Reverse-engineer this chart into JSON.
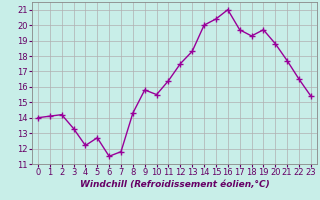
{
  "hours": [
    0,
    1,
    2,
    3,
    4,
    5,
    6,
    7,
    8,
    9,
    10,
    11,
    12,
    13,
    14,
    15,
    16,
    17,
    18,
    19,
    20,
    21,
    22,
    23
  ],
  "values": [
    14.0,
    14.1,
    14.2,
    13.3,
    12.2,
    12.7,
    11.5,
    11.8,
    14.3,
    15.8,
    15.5,
    16.4,
    17.5,
    18.3,
    20.0,
    20.4,
    21.0,
    19.7,
    19.3,
    19.7,
    18.8,
    17.7,
    16.5,
    15.4
  ],
  "line_color": "#990099",
  "marker": "+",
  "marker_size": 4,
  "linewidth": 1.0,
  "bg_color": "#c8eee8",
  "grid_color": "#b0b0b0",
  "xlabel": "Windchill (Refroidissement éolien,°C)",
  "ylim": [
    11,
    21.5
  ],
  "xlim": [
    -0.5,
    23.5
  ],
  "yticks": [
    11,
    12,
    13,
    14,
    15,
    16,
    17,
    18,
    19,
    20,
    21
  ],
  "xtick_labels": [
    "0",
    "1",
    "2",
    "3",
    "4",
    "5",
    "6",
    "7",
    "8",
    "9",
    "10",
    "11",
    "12",
    "13",
    "14",
    "15",
    "16",
    "17",
    "18",
    "19",
    "20",
    "21",
    "22",
    "23"
  ],
  "tick_color": "#660066",
  "label_color": "#660066",
  "axis_bg": "#c8eee8",
  "spine_color": "#888888",
  "xlabel_fontsize": 6.5,
  "tick_fontsize": 6.0,
  "markeredgewidth": 1.0
}
